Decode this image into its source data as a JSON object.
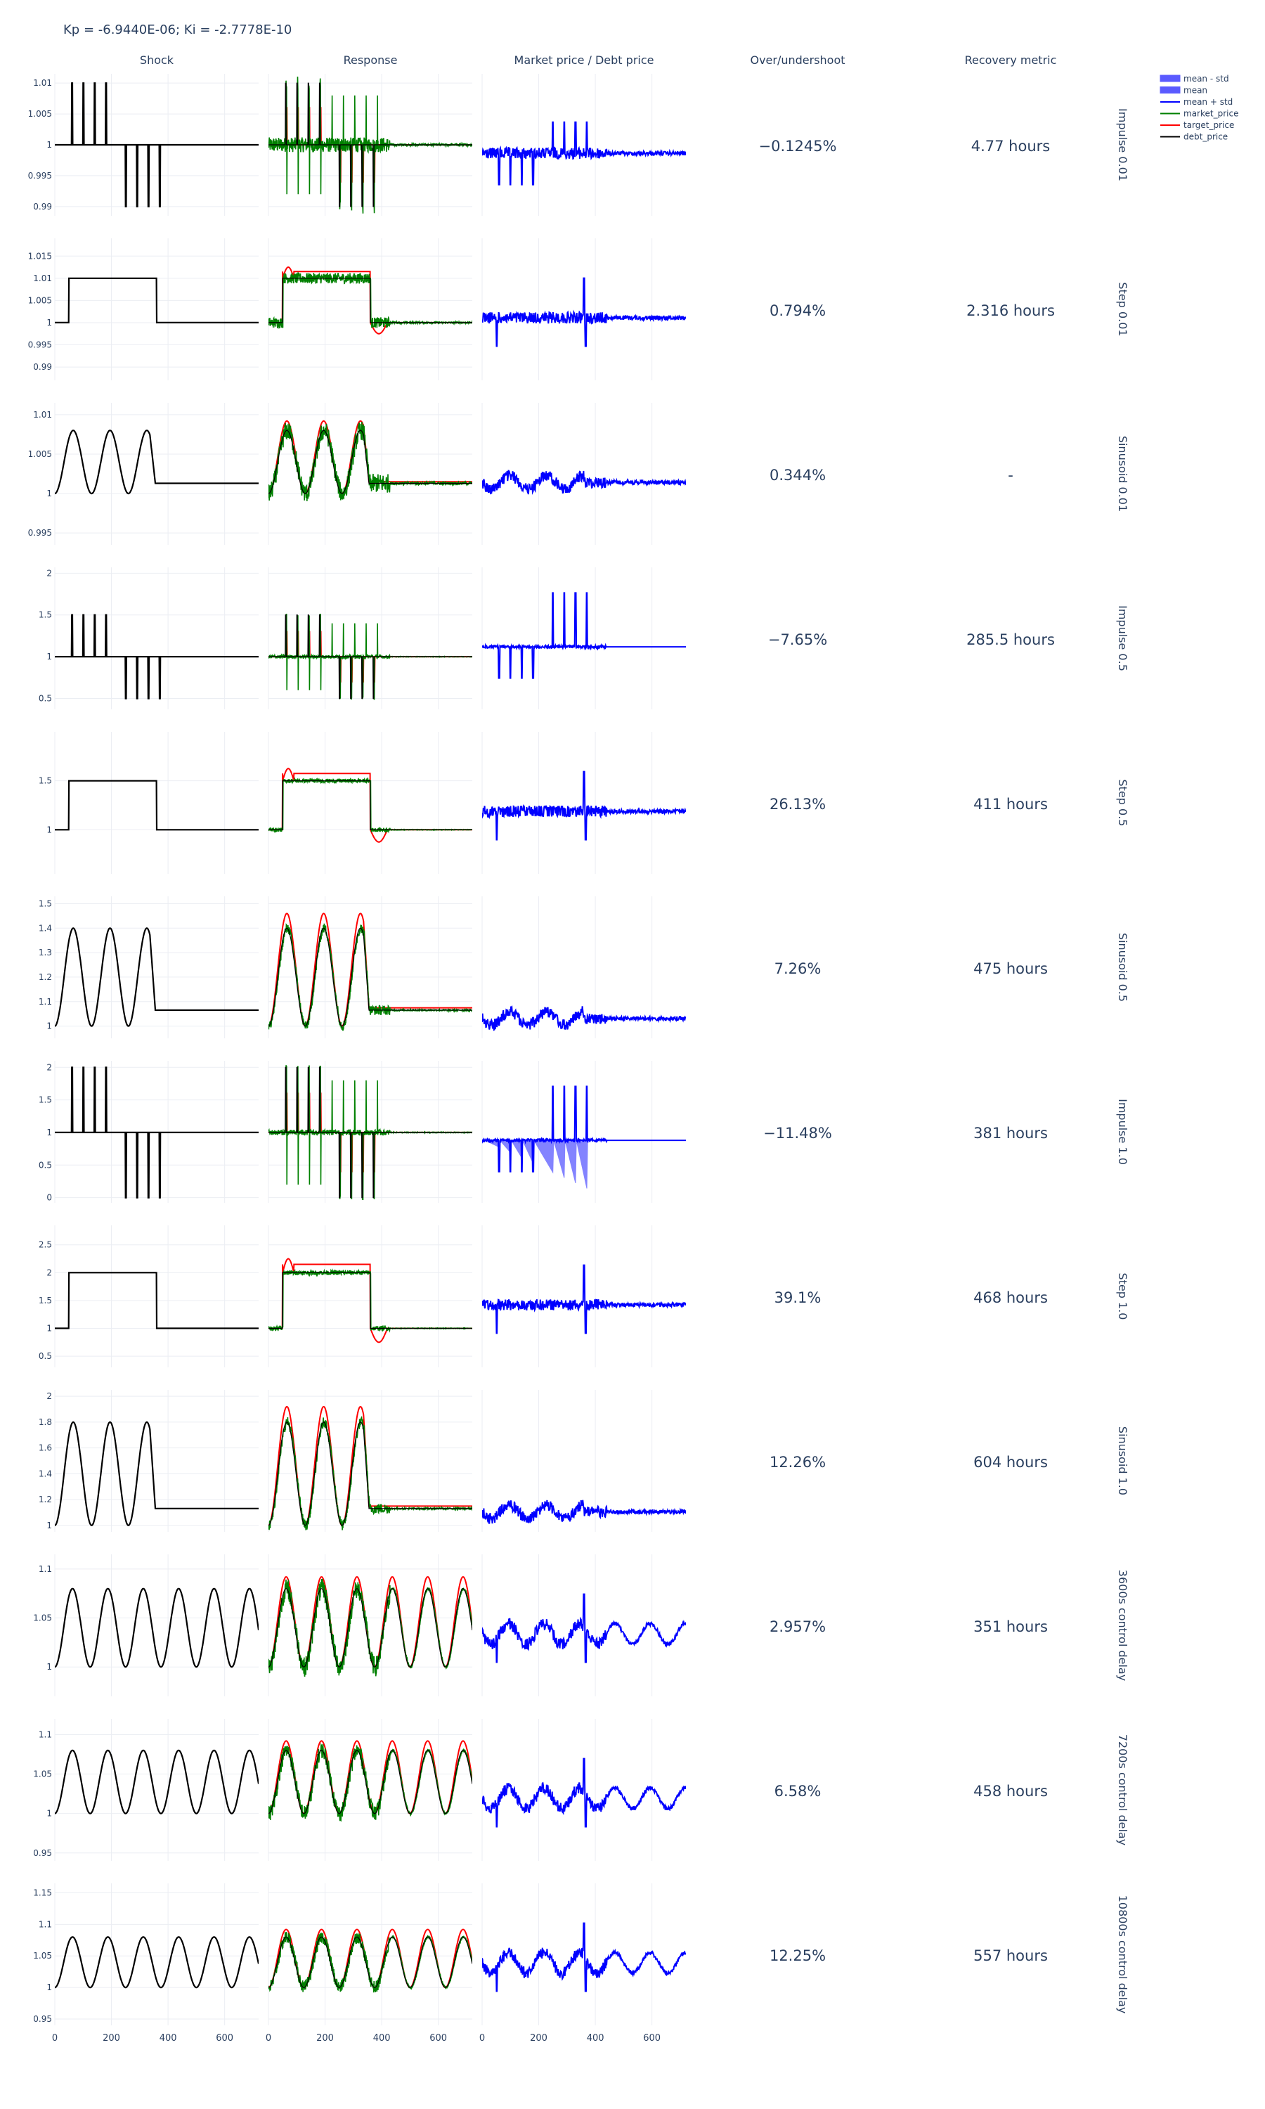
{
  "title": "Kp = -6.9440E-06; Ki = -2.7778E-10",
  "columns": [
    "Shock",
    "Response",
    "Market price / Debt price",
    "Over/undershoot",
    "Recovery metric"
  ],
  "legend": [
    {
      "name": "mean - std",
      "color": "#5a5aff",
      "kind": "fill"
    },
    {
      "name": "mean",
      "color": "#5a5aff",
      "kind": "fill"
    },
    {
      "name": "mean + std",
      "color": "#0000ff",
      "kind": "line"
    },
    {
      "name": "market_price",
      "color": "#008000",
      "kind": "line"
    },
    {
      "name": "target_price",
      "color": "#ff0000",
      "kind": "line"
    },
    {
      "name": "debt_price",
      "color": "#000000",
      "kind": "line"
    }
  ],
  "colors": {
    "debt": "#000000",
    "market": "#008000",
    "target": "#ff0000",
    "ratio": "#0000ff",
    "grid": "#ebeef3",
    "text": "#2a3f5f"
  },
  "chart_data": {
    "type": "line",
    "x_ticks": [
      0,
      200,
      400,
      600
    ],
    "xlim": [
      0,
      720
    ],
    "rows": [
      {
        "label": "Impulse 0.01",
        "shock": "impulse",
        "amp": 0.01,
        "yticks": [
          "1.01",
          "1.005",
          "1",
          "0.995",
          "0.99"
        ],
        "ylim": [
          0.9885,
          1.0115
        ],
        "overshoot": "−0.1245%",
        "recovery": "4.77 hours"
      },
      {
        "label": "Step 0.01",
        "shock": "step",
        "amp": 0.01,
        "yticks": [
          "1.015",
          "1.01",
          "1.005",
          "1",
          "0.995",
          "0.99"
        ],
        "ylim": [
          0.987,
          1.019
        ],
        "overshoot": "0.794%",
        "recovery": "2.316 hours"
      },
      {
        "label": "Sinusoid 0.01",
        "shock": "sinusoid",
        "amp": 0.01,
        "yticks": [
          "1.01",
          "1.005",
          "1",
          "0.995"
        ],
        "ylim": [
          0.9935,
          1.0115
        ],
        "overshoot": "0.344%",
        "recovery": "-"
      },
      {
        "label": "Impulse 0.5",
        "shock": "impulse",
        "amp": 0.5,
        "yticks": [
          "2",
          "1.5",
          "1",
          "0.5"
        ],
        "ylim": [
          0.37,
          2.07
        ],
        "overshoot": "−7.65%",
        "recovery": "285.5 hours"
      },
      {
        "label": "Step 0.5",
        "shock": "step",
        "amp": 0.5,
        "yticks": [
          "1.5",
          "1"
        ],
        "ylim": [
          0.55,
          2.0
        ],
        "overshoot": "26.13%",
        "recovery": "411 hours"
      },
      {
        "label": "Sinusoid 0.5",
        "shock": "sinusoid",
        "amp": 0.5,
        "yticks": [
          "1.5",
          "1.4",
          "1.3",
          "1.2",
          "1.1",
          "1"
        ],
        "ylim": [
          0.95,
          1.53
        ],
        "overshoot": "7.26%",
        "recovery": "475 hours"
      },
      {
        "label": "Impulse 1.0",
        "shock": "impulse",
        "amp": 1.0,
        "yticks": [
          "2",
          "1.5",
          "1",
          "0.5",
          "0"
        ],
        "ylim": [
          -0.08,
          2.1
        ],
        "overshoot": "−11.48%",
        "recovery": "381 hours"
      },
      {
        "label": "Step 1.0",
        "shock": "step",
        "amp": 1.0,
        "yticks": [
          "2.5",
          "2",
          "1.5",
          "1",
          "0.5"
        ],
        "ylim": [
          0.3,
          2.85
        ],
        "overshoot": "39.1%",
        "recovery": "468 hours"
      },
      {
        "label": "Sinusoid 1.0",
        "shock": "sinusoid",
        "amp": 1.0,
        "yticks": [
          "2",
          "1.8",
          "1.6",
          "1.4",
          "1.2",
          "1"
        ],
        "ylim": [
          0.95,
          2.05
        ],
        "overshoot": "12.26%",
        "recovery": "604 hours"
      },
      {
        "label": "3600s control delay",
        "shock": "delay",
        "amp": 0.04,
        "yticks": [
          "1.1",
          "1.05",
          "1"
        ],
        "ylim": [
          0.97,
          1.115
        ],
        "overshoot": "2.957%",
        "recovery": "351 hours"
      },
      {
        "label": "7200s control delay",
        "shock": "delay",
        "amp": 0.04,
        "yticks": [
          "1.1",
          "1.05",
          "1",
          "0.95"
        ],
        "ylim": [
          0.94,
          1.12
        ],
        "overshoot": "6.58%",
        "recovery": "458 hours"
      },
      {
        "label": "10800s control delay",
        "shock": "delay",
        "amp": 0.04,
        "yticks": [
          "1.15",
          "1.1",
          "1.05",
          "1",
          "0.95"
        ],
        "ylim": [
          0.94,
          1.165
        ],
        "overshoot": "12.25%",
        "recovery": "557 hours"
      }
    ]
  }
}
